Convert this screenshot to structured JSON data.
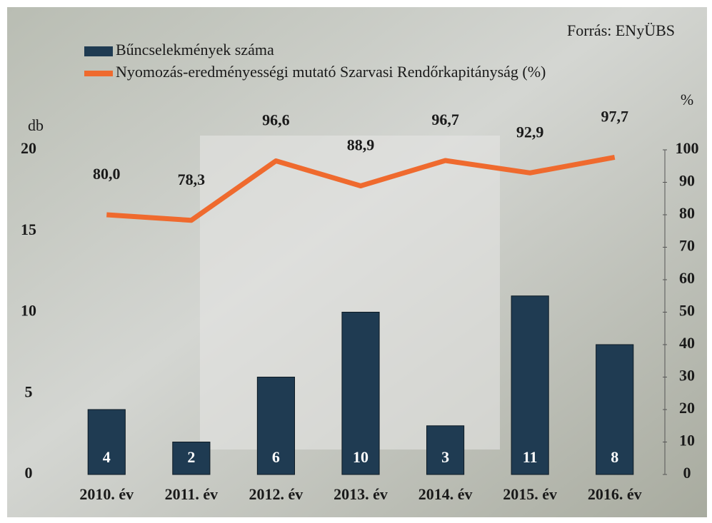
{
  "chart_data": {
    "type": "bar",
    "source": "Forrás: ENyÜBS",
    "ylabel": "db",
    "y2label": "%",
    "categories": [
      "2010. év",
      "2011. év",
      "2012. év",
      "2013. év",
      "2014. év",
      "2015. év",
      "2016. év"
    ],
    "series": [
      {
        "name": "Bűncselekmények száma",
        "color": "#1f3b52",
        "values": [
          4,
          2,
          6,
          10,
          3,
          11,
          8
        ]
      },
      {
        "name": "Nyomozás-eredményességi mutató Szarvasi Rendőrkapitányság (%)",
        "type": "line",
        "axis": "y2",
        "color": "#ef6a2e",
        "values": [
          80.0,
          78.3,
          96.6,
          88.9,
          96.7,
          92.9,
          97.7
        ],
        "value_labels": [
          "80,0",
          "78,3",
          "96,6",
          "88,9",
          "96,7",
          "92,9",
          "97,7"
        ]
      }
    ],
    "ylim": [
      0,
      20
    ],
    "yticks": [
      0,
      5,
      10,
      15,
      20
    ],
    "y2lim": [
      0,
      100
    ],
    "y2ticks": [
      0,
      10,
      20,
      30,
      40,
      50,
      60,
      70,
      80,
      90,
      100
    ],
    "legend": "top-left"
  }
}
